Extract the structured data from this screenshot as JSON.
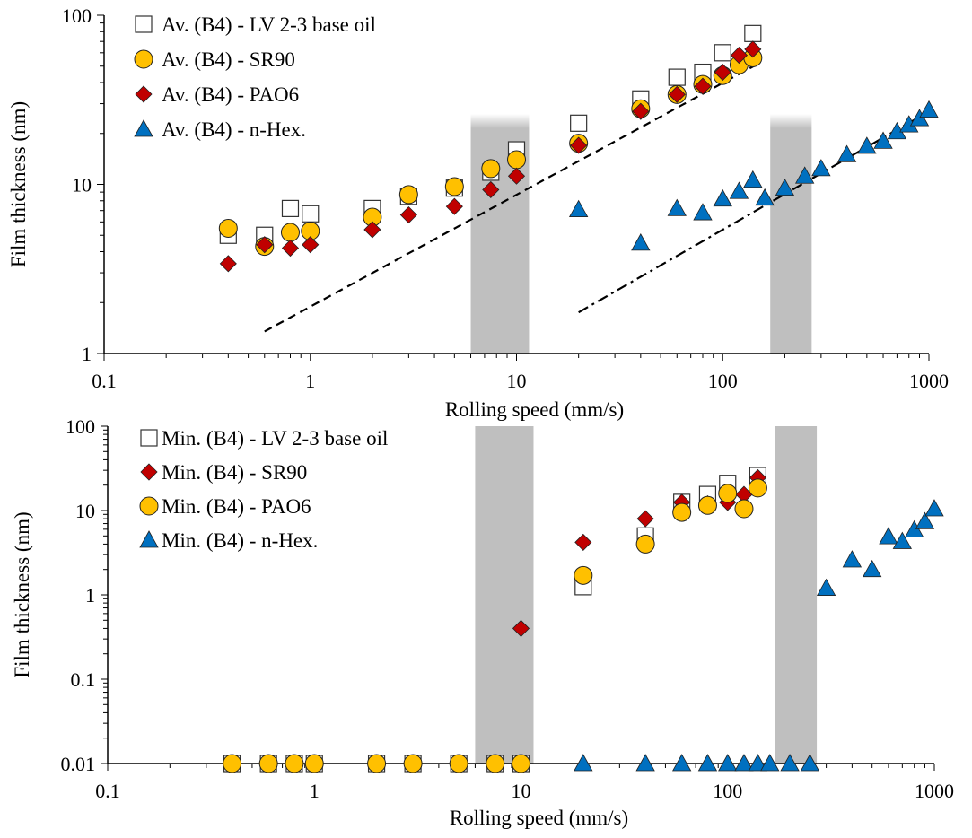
{
  "chart_data": [
    {
      "type": "scatter",
      "xscale": "log",
      "yscale": "log",
      "xlim": [
        0.1,
        1000
      ],
      "ylim": [
        1,
        100
      ],
      "xlabel": "Rolling speed (mm/s)",
      "ylabel": "Film thickness (nm)",
      "xticks": [
        "0.1",
        "1",
        "10",
        "100",
        "1000"
      ],
      "yticks": [
        "1",
        "10",
        "100"
      ],
      "legend_position": "top-left",
      "shaded_regions": [
        [
          6,
          11.5
        ],
        [
          170,
          270
        ]
      ],
      "series": [
        {
          "name": "Av. (B4) - LV 2-3 base oil",
          "marker": "square",
          "fill": "#ffffff",
          "x": [
            0.4,
            0.6,
            0.8,
            1,
            2,
            3,
            5,
            7.5,
            10,
            20,
            40,
            60,
            80,
            100,
            140
          ],
          "y": [
            5.0,
            5.0,
            7.2,
            6.7,
            7.2,
            8.5,
            9.5,
            11.8,
            16,
            23,
            32,
            43,
            46,
            60,
            78
          ]
        },
        {
          "name": "Av. (B4) - SR90",
          "marker": "circle",
          "fill": "#ffc000",
          "x": [
            0.4,
            0.6,
            0.8,
            1,
            2,
            3,
            5,
            7.5,
            10,
            20,
            40,
            60,
            80,
            100,
            120,
            140
          ],
          "y": [
            5.5,
            4.3,
            5.2,
            5.3,
            6.4,
            8.7,
            9.7,
            12.4,
            14,
            17.5,
            28,
            34,
            39,
            44,
            51,
            56
          ]
        },
        {
          "name": "Av. (B4) - PAO6",
          "marker": "diamond",
          "fill": "#c00000",
          "x": [
            0.4,
            0.6,
            0.8,
            1,
            2,
            3,
            5,
            7.5,
            10,
            20,
            40,
            60,
            80,
            100,
            120,
            140
          ],
          "y": [
            3.4,
            4.4,
            4.2,
            4.4,
            5.4,
            6.6,
            7.4,
            9.3,
            11.2,
            17,
            27,
            34,
            38,
            46,
            58,
            63
          ]
        },
        {
          "name": "Av. (B4) - n-Hex.",
          "marker": "triangle",
          "fill": "#0070c0",
          "x": [
            20,
            40,
            60,
            80,
            100,
            120,
            140,
            160,
            200,
            250,
            300,
            400,
            500,
            600,
            700,
            800,
            900,
            1000
          ],
          "y": [
            7.1,
            4.5,
            7.2,
            6.8,
            8.2,
            9.1,
            10.6,
            8.3,
            9.5,
            11.2,
            12.4,
            15,
            16.8,
            18,
            20.5,
            22.5,
            24.5,
            27.5
          ]
        }
      ],
      "reference_lines": [
        {
          "style": "dashed",
          "x": [
            0.6,
            150
          ],
          "y": [
            1.35,
            52
          ]
        },
        {
          "style": "dash-dot",
          "x": [
            20,
            1000
          ],
          "y": [
            1.75,
            27
          ]
        }
      ]
    },
    {
      "type": "scatter",
      "xscale": "log",
      "yscale": "log",
      "xlim": [
        0.1,
        1000
      ],
      "ylim": [
        0.01,
        100
      ],
      "xlabel": "Rolling speed (mm/s)",
      "ylabel": "Film thickness (nm)",
      "xticks": [
        "0.1",
        "1",
        "10",
        "100",
        "1000"
      ],
      "yticks": [
        "0.01",
        "0.1",
        "1",
        "10",
        "100"
      ],
      "legend_position": "top-left",
      "shaded_regions": [
        [
          6,
          11.5
        ],
        [
          170,
          270
        ]
      ],
      "series": [
        {
          "name": "Min. (B4) - LV 2-3 base oil",
          "marker": "square",
          "fill": "#ffffff",
          "x": [
            0.4,
            0.6,
            0.8,
            1,
            2,
            3,
            5,
            7.5,
            10,
            20,
            40,
            60,
            80,
            100,
            140
          ],
          "y": [
            0.01,
            0.01,
            0.01,
            0.01,
            0.01,
            0.01,
            0.01,
            0.01,
            0.01,
            1.25,
            5.0,
            12.5,
            15.5,
            21,
            26
          ]
        },
        {
          "name": "Min. (B4) - SR90",
          "marker": "diamond",
          "fill": "#c00000",
          "x": [
            10,
            20,
            40,
            60,
            80,
            100,
            120,
            140
          ],
          "y": [
            0.4,
            4.2,
            8.0,
            12.5,
            12.0,
            12.5,
            15.5,
            24.5
          ]
        },
        {
          "name": "Min. (B4) - PAO6",
          "marker": "circle",
          "fill": "#ffc000",
          "x": [
            0.4,
            0.6,
            0.8,
            1,
            2,
            3,
            5,
            7.5,
            10,
            20,
            40,
            60,
            80,
            100,
            120,
            140
          ],
          "y": [
            0.01,
            0.01,
            0.01,
            0.01,
            0.01,
            0.01,
            0.01,
            0.01,
            0.01,
            1.7,
            4.0,
            9.5,
            11.5,
            16,
            10.5,
            18.5
          ]
        },
        {
          "name": "Min. (B4) - n-Hex.",
          "marker": "triangle",
          "fill": "#0070c0",
          "x": [
            20,
            40,
            60,
            80,
            100,
            120,
            140,
            160,
            200,
            250,
            300,
            400,
            500,
            600,
            700,
            800,
            900,
            1000
          ],
          "y": [
            0.01,
            0.01,
            0.01,
            0.01,
            0.01,
            0.01,
            0.01,
            0.01,
            0.01,
            0.01,
            1.2,
            2.6,
            2.0,
            4.9,
            4.3,
            5.9,
            7.4,
            10.5
          ]
        }
      ]
    }
  ]
}
